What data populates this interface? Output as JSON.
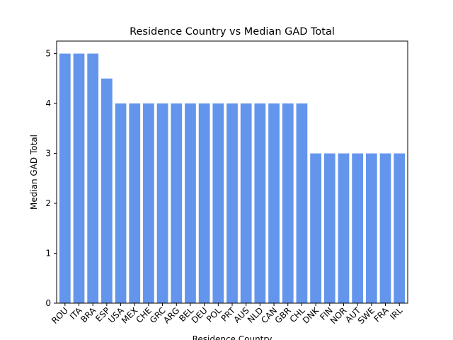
{
  "chart_data": {
    "type": "bar",
    "title": "Residence Country vs Median GAD Total",
    "xlabel": "Residence Country",
    "ylabel": "Median GAD Total",
    "categories": [
      "ROU",
      "ITA",
      "BRA",
      "ESP",
      "USA",
      "MEX",
      "CHE",
      "GRC",
      "ARG",
      "BEL",
      "DEU",
      "POL",
      "PRT",
      "AUS",
      "NLD",
      "CAN",
      "GBR",
      "CHL",
      "DNK",
      "FIN",
      "NOR",
      "AUT",
      "SWE",
      "FRA",
      "IRL"
    ],
    "values": [
      5,
      5,
      5,
      4.5,
      4,
      4,
      4,
      4,
      4,
      4,
      4,
      4,
      4,
      4,
      4,
      4,
      4,
      4,
      3,
      3,
      3,
      3,
      3,
      3,
      3
    ],
    "ylim": [
      0,
      5.25
    ],
    "yticks": [
      0,
      1,
      2,
      3,
      4,
      5
    ],
    "bar_color": "#6495ED",
    "grid": false,
    "legend": "none"
  }
}
